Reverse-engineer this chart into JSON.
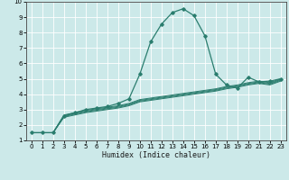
{
  "xlabel": "Humidex (Indice chaleur)",
  "bg_color": "#cce9e9",
  "grid_color": "#ffffff",
  "line_color": "#2a7d6e",
  "xlim": [
    -0.5,
    23.5
  ],
  "ylim": [
    1,
    10
  ],
  "xticks": [
    0,
    1,
    2,
    3,
    4,
    5,
    6,
    7,
    8,
    9,
    10,
    11,
    12,
    13,
    14,
    15,
    16,
    17,
    18,
    19,
    20,
    21,
    22,
    23
  ],
  "yticks": [
    1,
    2,
    3,
    4,
    5,
    6,
    7,
    8,
    9,
    10
  ],
  "lines": [
    {
      "x": [
        0,
        1,
        2,
        3,
        4,
        5,
        6,
        7,
        8,
        9,
        10,
        11,
        12,
        13,
        14,
        15,
        16,
        17,
        18,
        19,
        20,
        21,
        22,
        23
      ],
      "y": [
        1.5,
        1.5,
        1.5,
        2.5,
        2.65,
        2.8,
        2.9,
        3.0,
        3.1,
        3.25,
        3.5,
        3.6,
        3.7,
        3.8,
        3.9,
        4.0,
        4.1,
        4.2,
        4.35,
        4.45,
        4.6,
        4.7,
        4.6,
        4.85
      ],
      "markers": false,
      "lw": 0.7
    },
    {
      "x": [
        0,
        1,
        2,
        3,
        4,
        5,
        6,
        7,
        8,
        9,
        10,
        11,
        12,
        13,
        14,
        15,
        16,
        17,
        18,
        19,
        20,
        21,
        22,
        23
      ],
      "y": [
        1.5,
        1.5,
        1.5,
        2.55,
        2.7,
        2.85,
        2.95,
        3.05,
        3.15,
        3.3,
        3.55,
        3.65,
        3.75,
        3.85,
        3.95,
        4.05,
        4.15,
        4.25,
        4.4,
        4.5,
        4.65,
        4.75,
        4.65,
        4.9
      ],
      "markers": false,
      "lw": 0.7
    },
    {
      "x": [
        0,
        1,
        2,
        3,
        4,
        5,
        6,
        7,
        8,
        9,
        10,
        11,
        12,
        13,
        14,
        15,
        16,
        17,
        18,
        19,
        20,
        21,
        22,
        23
      ],
      "y": [
        1.5,
        1.5,
        1.5,
        2.6,
        2.75,
        2.9,
        3.0,
        3.1,
        3.2,
        3.35,
        3.6,
        3.7,
        3.8,
        3.9,
        4.0,
        4.1,
        4.2,
        4.3,
        4.45,
        4.55,
        4.7,
        4.8,
        4.7,
        4.95
      ],
      "markers": false,
      "lw": 0.7
    },
    {
      "x": [
        0,
        1,
        2,
        3,
        4,
        5,
        6,
        7,
        8,
        9,
        10,
        11,
        12,
        13,
        14,
        15,
        16,
        17,
        18,
        19,
        20,
        21,
        22,
        23
      ],
      "y": [
        1.5,
        1.5,
        1.5,
        2.65,
        2.8,
        2.95,
        3.05,
        3.15,
        3.25,
        3.4,
        3.65,
        3.75,
        3.85,
        3.95,
        4.05,
        4.15,
        4.25,
        4.35,
        4.5,
        4.6,
        4.75,
        4.85,
        4.75,
        5.0
      ],
      "markers": false,
      "lw": 0.7
    },
    {
      "x": [
        0,
        1,
        2,
        3,
        4,
        5,
        6,
        7,
        8,
        9,
        10,
        11,
        12,
        13,
        14,
        15,
        16,
        17,
        18,
        19,
        20,
        21,
        22,
        23
      ],
      "y": [
        1.5,
        1.5,
        1.5,
        2.6,
        2.8,
        3.0,
        3.1,
        3.2,
        3.4,
        3.7,
        5.3,
        7.4,
        8.55,
        9.3,
        9.55,
        9.1,
        7.8,
        5.3,
        4.6,
        4.4,
        5.1,
        4.8,
        4.85,
        5.0
      ],
      "markers": true,
      "lw": 0.9
    }
  ]
}
